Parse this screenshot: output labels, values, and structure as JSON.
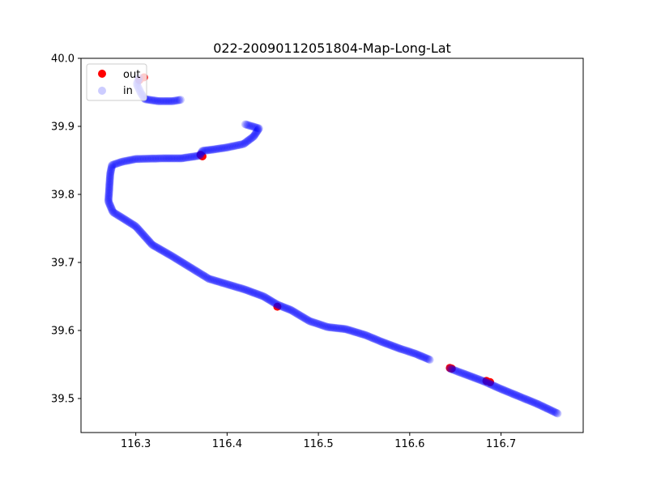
{
  "chart_data": {
    "type": "scatter",
    "title": "022-20090112051804-Map-Long-Lat",
    "xlabel": "",
    "ylabel": "",
    "xlim": [
      116.24,
      116.79
    ],
    "ylim": [
      39.45,
      40.0
    ],
    "xticks": [
      116.3,
      116.4,
      116.5,
      116.6,
      116.7
    ],
    "xtick_labels": [
      "116.3",
      "116.4",
      "116.5",
      "116.6",
      "116.7"
    ],
    "yticks": [
      39.5,
      39.6,
      39.7,
      39.8,
      39.9,
      40.0
    ],
    "ytick_labels": [
      "39.5",
      "39.6",
      "39.7",
      "39.8",
      "39.9",
      "40.0"
    ],
    "grid": false,
    "legend_position": "top-left",
    "series": [
      {
        "name": "out",
        "color": "#ff0000",
        "alpha": 1.0,
        "points": [
          [
            116.373,
            39.856
          ],
          [
            116.371,
            39.858
          ],
          [
            116.455,
            39.635
          ],
          [
            116.644,
            39.545
          ],
          [
            116.646,
            39.544
          ],
          [
            116.684,
            39.526
          ],
          [
            116.688,
            39.524
          ],
          [
            116.304,
            39.968
          ],
          [
            116.309,
            39.972
          ]
        ]
      },
      {
        "name": "in",
        "color": "#0000ff",
        "alpha": 0.2,
        "path_segments": [
          [
            [
              116.304,
              39.972
            ],
            [
              116.301,
              39.962
            ],
            [
              116.306,
              39.948
            ],
            [
              116.31,
              39.94
            ],
            [
              116.325,
              39.937
            ],
            [
              116.34,
              39.937
            ],
            [
              116.349,
              39.939
            ]
          ],
          [
            [
              116.42,
              39.903
            ],
            [
              116.435,
              39.897
            ],
            [
              116.429,
              39.885
            ],
            [
              116.418,
              39.874
            ],
            [
              116.4,
              39.869
            ],
            [
              116.385,
              39.866
            ],
            [
              116.373,
              39.864
            ],
            [
              116.37,
              39.857
            ],
            [
              116.35,
              39.853
            ],
            [
              116.33,
              39.853
            ],
            [
              116.3,
              39.852
            ],
            [
              116.285,
              39.848
            ],
            [
              116.274,
              39.843
            ],
            [
              116.272,
              39.83
            ],
            [
              116.271,
              39.81
            ],
            [
              116.27,
              39.79
            ],
            [
              116.275,
              39.774
            ],
            [
              116.287,
              39.764
            ],
            [
              116.3,
              39.753
            ],
            [
              116.318,
              39.726
            ],
            [
              116.34,
              39.709
            ],
            [
              116.363,
              39.69
            ],
            [
              116.38,
              39.676
            ],
            [
              116.4,
              39.668
            ],
            [
              116.42,
              39.66
            ],
            [
              116.44,
              39.65
            ],
            [
              116.455,
              39.638
            ],
            [
              116.47,
              39.63
            ],
            [
              116.49,
              39.614
            ],
            [
              116.51,
              39.605
            ],
            [
              116.53,
              39.602
            ],
            [
              116.552,
              39.593
            ],
            [
              116.57,
              39.583
            ],
            [
              116.59,
              39.573
            ],
            [
              116.606,
              39.566
            ],
            [
              116.622,
              39.557
            ]
          ],
          [
            [
              116.644,
              39.544
            ],
            [
              116.66,
              39.536
            ],
            [
              116.68,
              39.526
            ],
            [
              116.7,
              39.514
            ],
            [
              116.72,
              39.503
            ],
            [
              116.74,
              39.492
            ],
            [
              116.762,
              39.478
            ]
          ]
        ]
      }
    ]
  }
}
